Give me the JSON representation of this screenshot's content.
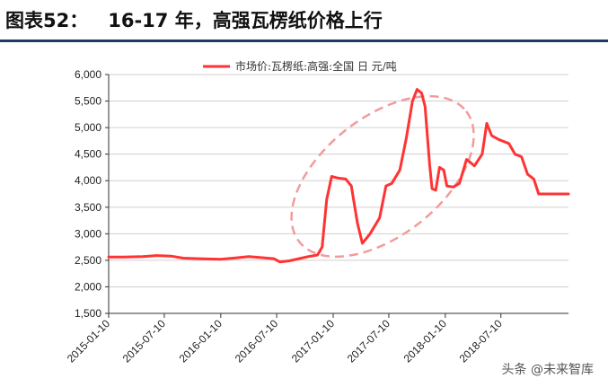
{
  "header": {
    "figure_label": "图表52：",
    "title_text": "16-17 年，高强瓦楞纸价格上行"
  },
  "watermark": "头条 @未来智库",
  "chart_data": {
    "type": "line",
    "title": "",
    "xlabel": "",
    "ylabel": "",
    "ylim": [
      1500,
      6000
    ],
    "yticks": [
      "1,500",
      "2,000",
      "2,500",
      "3,000",
      "3,500",
      "4,000",
      "4,500",
      "5,000",
      "5,500",
      "6,000"
    ],
    "ytick_values": [
      1500,
      2000,
      2500,
      3000,
      3500,
      4000,
      4500,
      5000,
      5500,
      6000
    ],
    "xlim": [
      "2015-01-10",
      "2019-02-15"
    ],
    "xticks": [
      "2015-01-10",
      "2015-07-10",
      "2016-01-10",
      "2016-07-10",
      "2017-01-10",
      "2017-07-10",
      "2018-01-10",
      "2018-07-10"
    ],
    "grid": "horizontal",
    "legend_position": "top-center",
    "line_color": "#ff3333",
    "highlight_color": "#f29b9b",
    "series": [
      {
        "name": "市场价:瓦楞纸:高强:全国 日 元/吨",
        "points": [
          [
            "2015-01-10",
            2560
          ],
          [
            "2015-03-01",
            2560
          ],
          [
            "2015-05-01",
            2570
          ],
          [
            "2015-06-15",
            2590
          ],
          [
            "2015-08-01",
            2580
          ],
          [
            "2015-09-10",
            2540
          ],
          [
            "2015-11-01",
            2530
          ],
          [
            "2016-01-10",
            2520
          ],
          [
            "2016-02-20",
            2540
          ],
          [
            "2016-04-10",
            2570
          ],
          [
            "2016-05-20",
            2550
          ],
          [
            "2016-07-01",
            2530
          ],
          [
            "2016-07-20",
            2470
          ],
          [
            "2016-08-20",
            2490
          ],
          [
            "2016-09-20",
            2530
          ],
          [
            "2016-10-20",
            2570
          ],
          [
            "2016-11-20",
            2600
          ],
          [
            "2016-12-05",
            2750
          ],
          [
            "2016-12-20",
            3650
          ],
          [
            "2017-01-05",
            4080
          ],
          [
            "2017-01-25",
            4050
          ],
          [
            "2017-02-20",
            4030
          ],
          [
            "2017-03-10",
            3900
          ],
          [
            "2017-03-30",
            3200
          ],
          [
            "2017-04-15",
            2820
          ],
          [
            "2017-05-10",
            3000
          ],
          [
            "2017-06-10",
            3300
          ],
          [
            "2017-07-01",
            3900
          ],
          [
            "2017-07-20",
            3950
          ],
          [
            "2017-08-15",
            4200
          ],
          [
            "2017-09-05",
            4800
          ],
          [
            "2017-09-25",
            5500
          ],
          [
            "2017-10-10",
            5720
          ],
          [
            "2017-10-25",
            5650
          ],
          [
            "2017-11-05",
            5400
          ],
          [
            "2017-11-20",
            4300
          ],
          [
            "2017-11-28",
            3850
          ],
          [
            "2017-12-10",
            3820
          ],
          [
            "2017-12-22",
            4250
          ],
          [
            "2018-01-05",
            4200
          ],
          [
            "2018-01-15",
            3900
          ],
          [
            "2018-02-05",
            3880
          ],
          [
            "2018-02-25",
            3950
          ],
          [
            "2018-03-20",
            4400
          ],
          [
            "2018-04-15",
            4280
          ],
          [
            "2018-05-10",
            4500
          ],
          [
            "2018-05-25",
            5080
          ],
          [
            "2018-06-10",
            4850
          ],
          [
            "2018-07-01",
            4780
          ],
          [
            "2018-08-05",
            4700
          ],
          [
            "2018-08-25",
            4500
          ],
          [
            "2018-09-15",
            4450
          ],
          [
            "2018-10-05",
            4120
          ],
          [
            "2018-10-25",
            4030
          ],
          [
            "2018-11-10",
            3750
          ],
          [
            "2019-02-15",
            3750
          ]
        ]
      }
    ]
  }
}
